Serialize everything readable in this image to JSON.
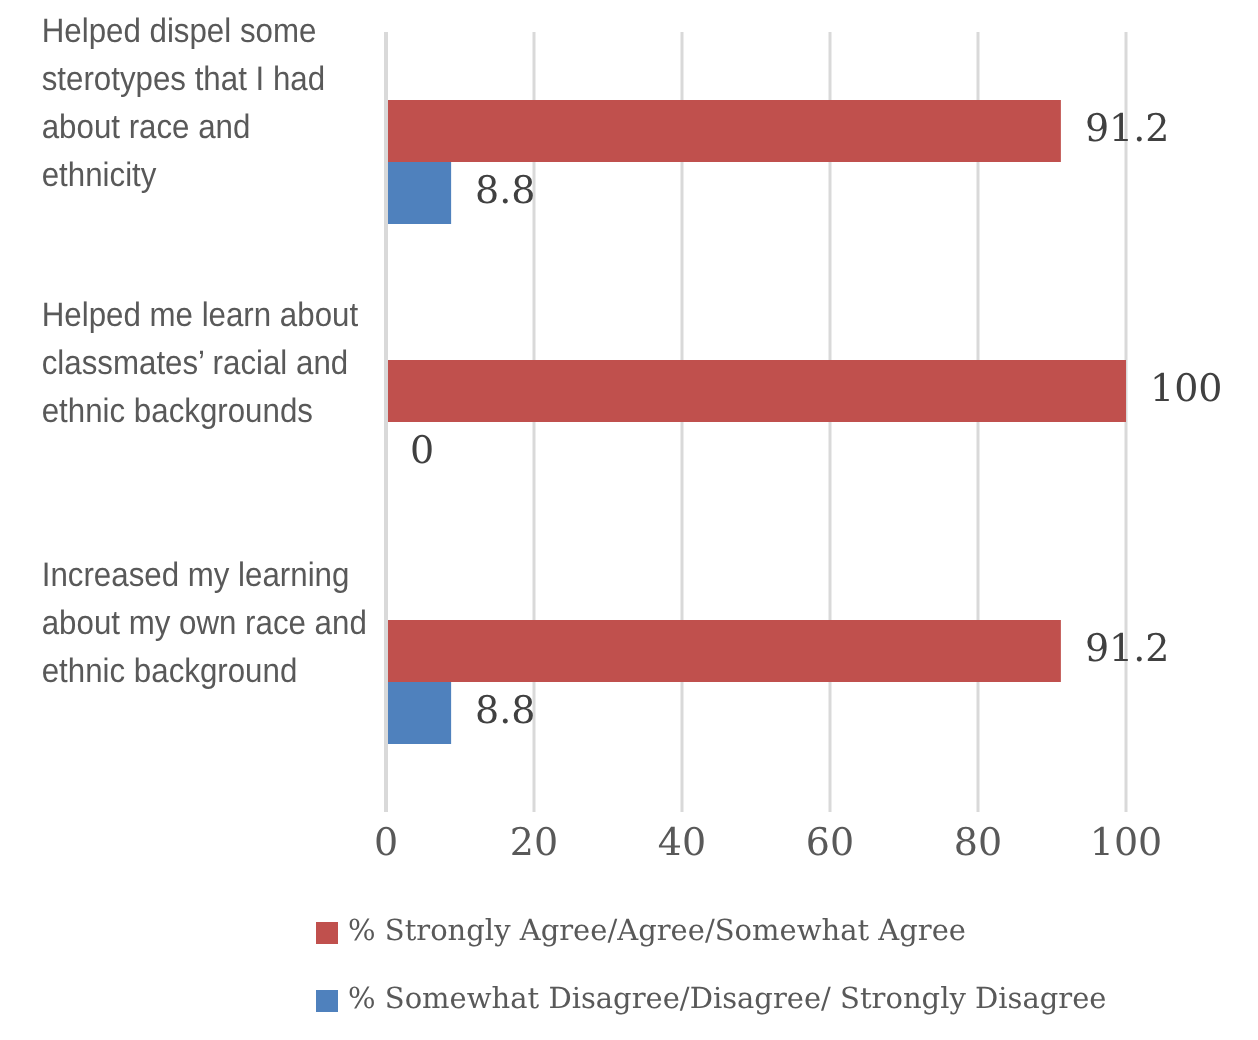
{
  "chart_data": {
    "type": "bar",
    "orientation": "horizontal",
    "categories": [
      "Helped dispel some sterotypes that I had about race and ethnicity",
      "Helped me learn about classmates’ racial and ethnic backgrounds",
      "Increased my learning about my own race and ethnic background"
    ],
    "series": [
      {
        "name": "% Strongly Agree/Agree/Somewhat Agree",
        "color": "#c0504d",
        "values": [
          91.2,
          100,
          91.2
        ]
      },
      {
        "name": "% Somewhat Disagree/Disagree/ Strongly Disagree",
        "color": "#4f81bd",
        "values": [
          8.8,
          0,
          8.8
        ]
      }
    ],
    "xlim": [
      0,
      100
    ],
    "xticks": [
      0,
      20,
      40,
      60,
      80,
      100
    ],
    "grid": "x",
    "legend": "bottom",
    "data_labels": true
  }
}
